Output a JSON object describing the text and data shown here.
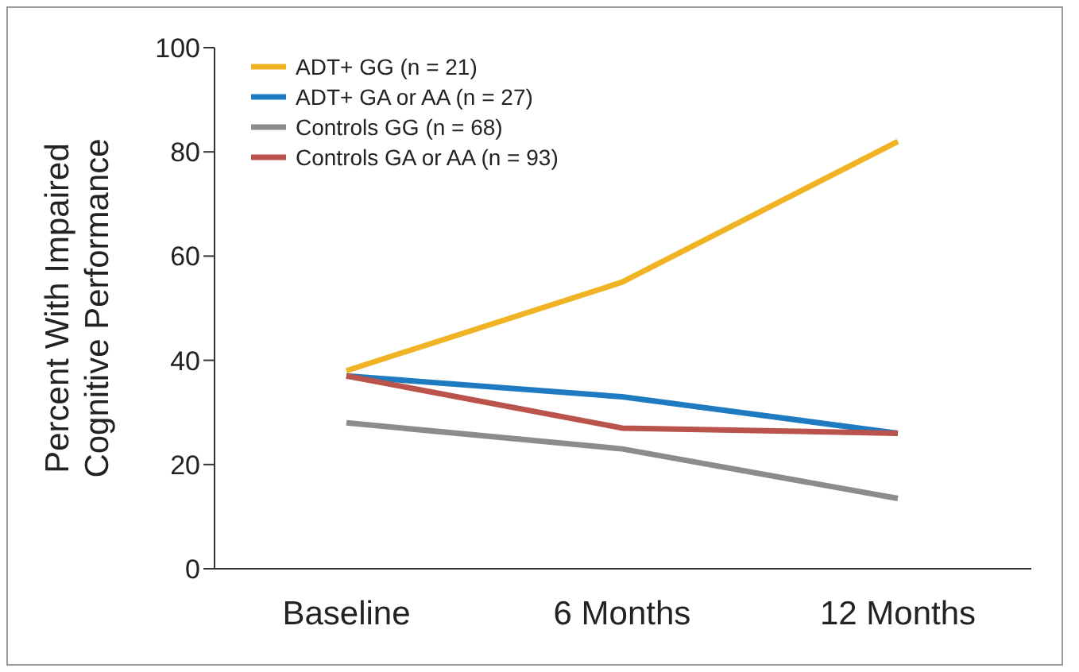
{
  "chart_data": {
    "type": "line",
    "ylabel": "Percent With Impaired\nCognitive Performance",
    "categories": [
      "Baseline",
      "6 Months",
      "12 Months"
    ],
    "series": [
      {
        "name": "ADT+ GG (n = 21)",
        "color": "#f0b323",
        "values": [
          38,
          55,
          82
        ]
      },
      {
        "name": "ADT+ GA or AA (n = 27)",
        "color": "#1f7bc1",
        "values": [
          37,
          33,
          26
        ]
      },
      {
        "name": "Controls GG (n = 68)",
        "color": "#8c8c8c",
        "values": [
          28,
          23,
          13.5
        ]
      },
      {
        "name": "Controls GA or AA (n = 93)",
        "color": "#b9534c",
        "values": [
          37,
          27,
          26
        ]
      }
    ],
    "ylim": [
      0,
      100
    ],
    "yticks": [
      0,
      20,
      40,
      60,
      80,
      100
    ],
    "grid": false,
    "legend": "top left",
    "marker": "none",
    "line_style": "solid"
  }
}
